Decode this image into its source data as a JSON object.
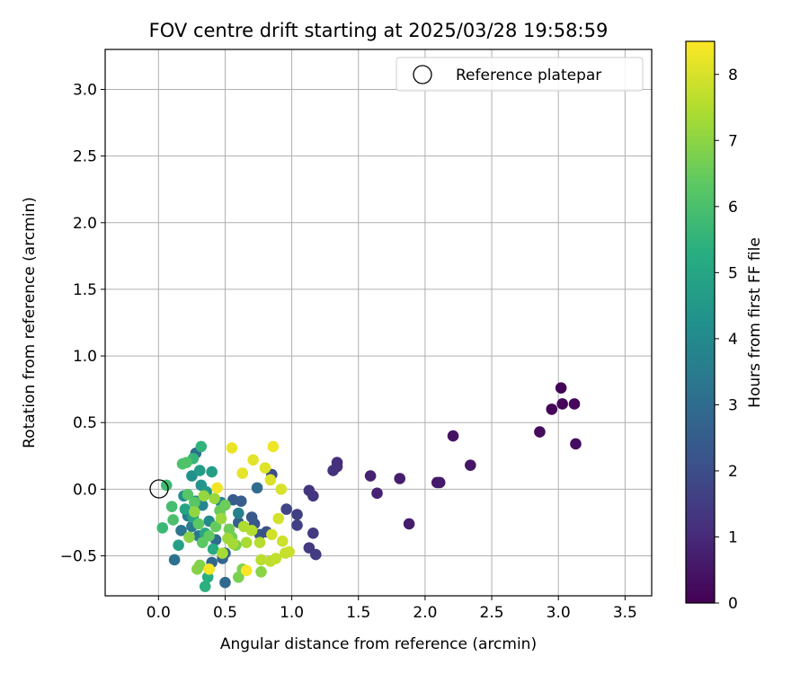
{
  "chart_data": {
    "type": "scatter",
    "title": "FOV centre drift starting at 2025/03/28 19:58:59",
    "xlabel": "Angular distance from reference (arcmin)",
    "ylabel": "Rotation from reference (arcmin)",
    "xlim": [
      -0.4,
      3.7
    ],
    "ylim": [
      -0.8,
      3.3
    ],
    "xticks": [
      0.0,
      0.5,
      1.0,
      1.5,
      2.0,
      2.5,
      3.0,
      3.5
    ],
    "xtick_labels": [
      "0.0",
      "0.5",
      "1.0",
      "1.5",
      "2.0",
      "2.5",
      "3.0",
      "3.5"
    ],
    "yticks": [
      -0.5,
      0.0,
      0.5,
      1.0,
      1.5,
      2.0,
      2.5,
      3.0
    ],
    "ytick_labels": [
      "−0.5",
      "0.0",
      "0.5",
      "1.0",
      "1.5",
      "2.0",
      "2.5",
      "3.0"
    ],
    "grid": true,
    "legend": {
      "position": "top-right",
      "entries": [
        "Reference platepar"
      ]
    },
    "reference_point": {
      "x": 0.0,
      "y": 0.0,
      "label": "Reference platepar"
    },
    "colorbar": {
      "label": "Hours from first FF file",
      "colormap": "viridis",
      "range": [
        0,
        8.5
      ],
      "ticks": [
        0,
        1,
        2,
        3,
        4,
        5,
        6,
        7,
        8
      ],
      "tick_labels": [
        "0",
        "1",
        "2",
        "3",
        "4",
        "5",
        "6",
        "7",
        "8"
      ]
    },
    "points": [
      {
        "x": 3.02,
        "y": 0.76,
        "c": 0.05
      },
      {
        "x": 2.95,
        "y": 0.6,
        "c": 0.1
      },
      {
        "x": 3.03,
        "y": 0.64,
        "c": 0.15
      },
      {
        "x": 3.12,
        "y": 0.64,
        "c": 0.2
      },
      {
        "x": 2.86,
        "y": 0.43,
        "c": 0.25
      },
      {
        "x": 3.13,
        "y": 0.34,
        "c": 0.3
      },
      {
        "x": 2.21,
        "y": 0.4,
        "c": 0.4
      },
      {
        "x": 2.34,
        "y": 0.18,
        "c": 0.5
      },
      {
        "x": 2.09,
        "y": 0.05,
        "c": 0.55
      },
      {
        "x": 2.11,
        "y": 0.05,
        "c": 0.6
      },
      {
        "x": 1.88,
        "y": -0.26,
        "c": 0.65
      },
      {
        "x": 1.81,
        "y": 0.08,
        "c": 0.7
      },
      {
        "x": 1.59,
        "y": 0.1,
        "c": 0.8
      },
      {
        "x": 1.64,
        "y": -0.03,
        "c": 0.85
      },
      {
        "x": 1.34,
        "y": 0.2,
        "c": 1.1
      },
      {
        "x": 1.34,
        "y": 0.17,
        "c": 1.15
      },
      {
        "x": 1.31,
        "y": 0.14,
        "c": 1.2
      },
      {
        "x": 1.13,
        "y": -0.01,
        "c": 1.3
      },
      {
        "x": 1.16,
        "y": -0.05,
        "c": 1.35
      },
      {
        "x": 1.16,
        "y": -0.33,
        "c": 1.4
      },
      {
        "x": 1.13,
        "y": -0.44,
        "c": 1.45
      },
      {
        "x": 1.18,
        "y": -0.49,
        "c": 1.5
      },
      {
        "x": 1.04,
        "y": -0.19,
        "c": 1.6
      },
      {
        "x": 1.04,
        "y": -0.27,
        "c": 1.65
      },
      {
        "x": 0.96,
        "y": -0.15,
        "c": 1.75
      },
      {
        "x": 0.85,
        "y": 0.11,
        "c": 2.0
      },
      {
        "x": 0.81,
        "y": -0.32,
        "c": 2.1
      },
      {
        "x": 0.76,
        "y": -0.34,
        "c": 2.2
      },
      {
        "x": 0.72,
        "y": -0.26,
        "c": 2.3
      },
      {
        "x": 0.7,
        "y": -0.21,
        "c": 2.35
      },
      {
        "x": 0.56,
        "y": -0.08,
        "c": 2.45
      },
      {
        "x": 0.62,
        "y": -0.09,
        "c": 2.5
      },
      {
        "x": 0.6,
        "y": -0.25,
        "c": 2.6
      },
      {
        "x": 0.5,
        "y": -0.48,
        "c": 2.7
      },
      {
        "x": 0.48,
        "y": -0.52,
        "c": 2.75
      },
      {
        "x": 0.4,
        "y": -0.55,
        "c": 2.8
      },
      {
        "x": 0.5,
        "y": -0.7,
        "c": 2.9
      },
      {
        "x": 0.43,
        "y": -0.38,
        "c": 3.0
      },
      {
        "x": 0.74,
        "y": 0.01,
        "c": 3.0
      },
      {
        "x": 0.28,
        "y": 0.27,
        "c": 3.1
      },
      {
        "x": 0.12,
        "y": -0.53,
        "c": 3.2
      },
      {
        "x": 0.17,
        "y": -0.31,
        "c": 3.3
      },
      {
        "x": 0.3,
        "y": -0.35,
        "c": 3.4
      },
      {
        "x": 0.25,
        "y": -0.28,
        "c": 3.5
      },
      {
        "x": 0.22,
        "y": -0.2,
        "c": 3.6
      },
      {
        "x": 0.6,
        "y": -0.18,
        "c": 3.7
      },
      {
        "x": 0.47,
        "y": -0.1,
        "c": 3.8
      },
      {
        "x": 0.33,
        "y": -0.12,
        "c": 3.9
      },
      {
        "x": 0.38,
        "y": -0.24,
        "c": 4.0
      },
      {
        "x": 0.28,
        "y": -0.09,
        "c": 4.1
      },
      {
        "x": 0.19,
        "y": -0.05,
        "c": 4.2
      },
      {
        "x": 0.25,
        "y": 0.1,
        "c": 4.3
      },
      {
        "x": 0.32,
        "y": 0.03,
        "c": 4.4
      },
      {
        "x": 0.36,
        "y": -0.02,
        "c": 4.5
      },
      {
        "x": 0.31,
        "y": 0.14,
        "c": 4.6
      },
      {
        "x": 0.4,
        "y": 0.13,
        "c": 4.7
      },
      {
        "x": 0.15,
        "y": -0.42,
        "c": 4.8
      },
      {
        "x": 0.2,
        "y": -0.15,
        "c": 4.9
      },
      {
        "x": 0.26,
        "y": -0.21,
        "c": 5.0
      },
      {
        "x": 0.35,
        "y": -0.33,
        "c": 5.1
      },
      {
        "x": 0.41,
        "y": -0.45,
        "c": 5.2
      },
      {
        "x": 0.37,
        "y": -0.66,
        "c": 5.3
      },
      {
        "x": 0.35,
        "y": -0.73,
        "c": 5.4
      },
      {
        "x": 0.32,
        "y": 0.32,
        "c": 5.5
      },
      {
        "x": 0.26,
        "y": 0.23,
        "c": 5.6
      },
      {
        "x": 0.03,
        "y": -0.29,
        "c": 5.7
      },
      {
        "x": 0.06,
        "y": 0.03,
        "c": 5.8
      },
      {
        "x": 0.1,
        "y": -0.13,
        "c": 5.9
      },
      {
        "x": 0.11,
        "y": -0.23,
        "c": 6.0
      },
      {
        "x": 0.18,
        "y": 0.19,
        "c": 6.05
      },
      {
        "x": 0.21,
        "y": 0.2,
        "c": 6.1
      },
      {
        "x": 0.22,
        "y": -0.04,
        "c": 6.2
      },
      {
        "x": 0.27,
        "y": -0.1,
        "c": 6.25
      },
      {
        "x": 0.3,
        "y": -0.26,
        "c": 6.3
      },
      {
        "x": 0.33,
        "y": -0.4,
        "c": 6.35
      },
      {
        "x": 0.38,
        "y": -0.35,
        "c": 6.4
      },
      {
        "x": 0.43,
        "y": -0.28,
        "c": 6.45
      },
      {
        "x": 0.46,
        "y": -0.16,
        "c": 6.5
      },
      {
        "x": 0.5,
        "y": -0.12,
        "c": 6.55
      },
      {
        "x": 0.53,
        "y": -0.3,
        "c": 6.6
      },
      {
        "x": 0.55,
        "y": -0.36,
        "c": 6.65
      },
      {
        "x": 0.58,
        "y": -0.42,
        "c": 6.7
      },
      {
        "x": 0.6,
        "y": -0.66,
        "c": 6.75
      },
      {
        "x": 0.63,
        "y": -0.6,
        "c": 6.8
      },
      {
        "x": 0.31,
        "y": -0.57,
        "c": 6.85
      },
      {
        "x": 0.29,
        "y": -0.6,
        "c": 6.9
      },
      {
        "x": 0.77,
        "y": -0.62,
        "c": 6.95
      },
      {
        "x": 0.23,
        "y": -0.36,
        "c": 7.0
      },
      {
        "x": 0.27,
        "y": -0.17,
        "c": 7.05
      },
      {
        "x": 0.34,
        "y": -0.05,
        "c": 7.1
      },
      {
        "x": 0.42,
        "y": -0.07,
        "c": 7.15
      },
      {
        "x": 0.47,
        "y": -0.22,
        "c": 7.2
      },
      {
        "x": 0.52,
        "y": -0.37,
        "c": 7.25
      },
      {
        "x": 0.56,
        "y": -0.41,
        "c": 7.3
      },
      {
        "x": 0.48,
        "y": -0.48,
        "c": 7.35
      },
      {
        "x": 0.66,
        "y": -0.4,
        "c": 7.4
      },
      {
        "x": 0.64,
        "y": -0.28,
        "c": 7.45
      },
      {
        "x": 0.7,
        "y": -0.31,
        "c": 7.5
      },
      {
        "x": 0.76,
        "y": -0.4,
        "c": 7.55
      },
      {
        "x": 0.77,
        "y": -0.53,
        "c": 7.6
      },
      {
        "x": 0.84,
        "y": -0.54,
        "c": 7.65
      },
      {
        "x": 0.88,
        "y": -0.52,
        "c": 7.7
      },
      {
        "x": 0.95,
        "y": -0.48,
        "c": 7.75
      },
      {
        "x": 0.98,
        "y": -0.47,
        "c": 7.8
      },
      {
        "x": 0.93,
        "y": -0.39,
        "c": 7.85
      },
      {
        "x": 0.85,
        "y": -0.34,
        "c": 7.9
      },
      {
        "x": 0.9,
        "y": -0.22,
        "c": 7.95
      },
      {
        "x": 0.92,
        "y": 0.0,
        "c": 8.0
      },
      {
        "x": 0.84,
        "y": 0.07,
        "c": 8.05
      },
      {
        "x": 0.8,
        "y": 0.16,
        "c": 8.1
      },
      {
        "x": 0.71,
        "y": 0.22,
        "c": 8.15
      },
      {
        "x": 0.63,
        "y": 0.12,
        "c": 8.2
      },
      {
        "x": 0.55,
        "y": 0.31,
        "c": 8.25
      },
      {
        "x": 0.86,
        "y": 0.32,
        "c": 8.3
      },
      {
        "x": 0.44,
        "y": 0.01,
        "c": 8.35
      },
      {
        "x": 0.38,
        "y": -0.6,
        "c": 8.4
      },
      {
        "x": 0.66,
        "y": -0.61,
        "c": 8.45
      }
    ]
  }
}
